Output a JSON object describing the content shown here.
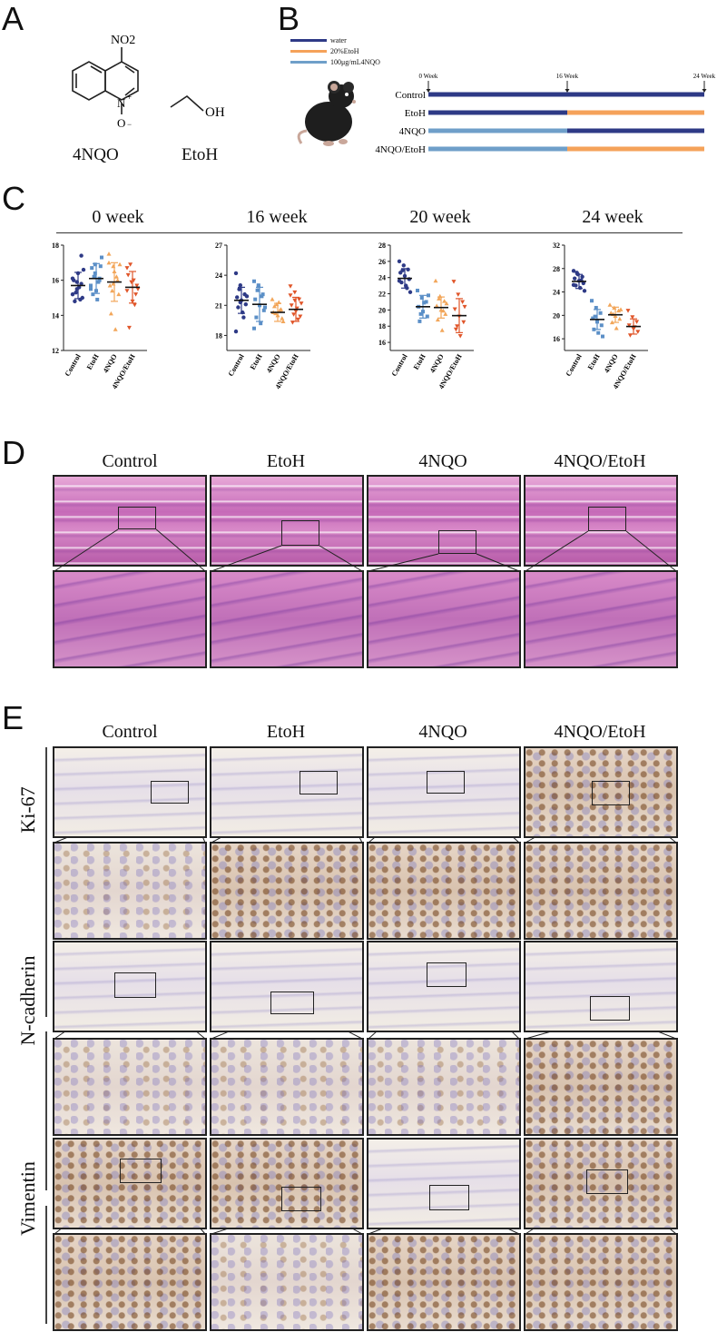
{
  "panels": {
    "A": "A",
    "B": "B",
    "C": "C",
    "D": "D",
    "E": "E"
  },
  "panelA": {
    "chem1_label": "4NQO",
    "chem2_label": "EtoH",
    "no2_label": "NO2",
    "oh_label": "OH",
    "n_label": "N",
    "o_label": "O"
  },
  "panelB": {
    "legend": [
      {
        "label": "water",
        "color": "#2e3a86"
      },
      {
        "label": "20%EtoH",
        "color": "#f5a25a"
      },
      {
        "label": "100μg/mL4NQO",
        "color": "#6f9fc9"
      }
    ],
    "timepoints": [
      "0 Week",
      "16 Week",
      "24 Week"
    ],
    "groups": [
      {
        "name": "Control",
        "before": "#2e3a86",
        "after": "#2e3a86"
      },
      {
        "name": "EtoH",
        "before": "#2e3a86",
        "after": "#f5a25a"
      },
      {
        "name": "4NQO",
        "before": "#6f9fc9",
        "after": "#2e3a86"
      },
      {
        "name": "4NQO/EtoH",
        "before": "#6f9fc9",
        "after": "#f5a25a"
      }
    ]
  },
  "chart_data": [
    {
      "type": "scatter",
      "title": "0 week",
      "categories": [
        "Control",
        "EtoH",
        "4NQO",
        "4NQO/EtoH"
      ],
      "colors": [
        "#2e3a86",
        "#5b8fc7",
        "#f2a65a",
        "#e0562a"
      ],
      "ylim": [
        12,
        18
      ],
      "yticks": [
        12,
        14,
        16,
        18
      ],
      "means": [
        15.7,
        16.1,
        15.9,
        15.6
      ],
      "sds": [
        0.75,
        0.85,
        1.1,
        0.9
      ],
      "points": [
        [
          15.2,
          15.5,
          15.8,
          16.0,
          16.4,
          15.0,
          14.8,
          15.6,
          16.6,
          15.3,
          14.9,
          16.1,
          15.9,
          17.4
        ],
        [
          15.7,
          16.4,
          16.0,
          16.7,
          15.4,
          16.8,
          15.2,
          14.9,
          17.3,
          16.2,
          15.9,
          15.5,
          16.9,
          16.1
        ],
        [
          17.5,
          16.8,
          16.0,
          15.7,
          16.5,
          15.2,
          14.1,
          13.2,
          16.9,
          15.4,
          16.2,
          17.0,
          15.8
        ],
        [
          16.7,
          15.9,
          15.2,
          16.3,
          14.8,
          15.7,
          13.3,
          16.0,
          15.5,
          16.9,
          14.6,
          15.4
        ]
      ]
    },
    {
      "type": "scatter",
      "title": "16 week",
      "categories": [
        "Control",
        "EtoH",
        "4NQO",
        "4NQO/EtoH"
      ],
      "colors": [
        "#2e3a86",
        "#5b8fc7",
        "#f2a65a",
        "#e0562a"
      ],
      "ylim": [
        16.5,
        27
      ],
      "yticks": [
        18,
        21,
        24,
        27
      ],
      "means": [
        21.5,
        21.1,
        20.3,
        20.6
      ],
      "sds": [
        1.3,
        1.7,
        0.9,
        1.2
      ],
      "points": [
        [
          24.2,
          23.0,
          22.1,
          21.8,
          21.5,
          21.1,
          20.8,
          20.3,
          21.9,
          22.6,
          19.8,
          18.4,
          21.3
        ],
        [
          23.4,
          22.9,
          22.1,
          21.6,
          21.0,
          20.5,
          19.8,
          19.2,
          20.8,
          22.5,
          21.9,
          18.7,
          23.0
        ],
        [
          21.6,
          21.1,
          20.6,
          20.3,
          20.0,
          19.7,
          20.9,
          21.3,
          19.4,
          20.2,
          20.5
        ],
        [
          22.9,
          22.3,
          21.6,
          21.0,
          20.4,
          19.9,
          19.3,
          20.7,
          21.2,
          20.1,
          19.6,
          22.0,
          21.5
        ]
      ]
    },
    {
      "type": "scatter",
      "title": "20 week",
      "categories": [
        "Control",
        "EtoH",
        "4NQO",
        "4NQO/EtoH"
      ],
      "colors": [
        "#2e3a86",
        "#5b8fc7",
        "#f2a65a",
        "#e0562a"
      ],
      "ylim": [
        15,
        28
      ],
      "yticks": [
        16,
        18,
        20,
        22,
        24,
        26,
        28
      ],
      "means": [
        23.9,
        20.4,
        20.3,
        19.3
      ],
      "sds": [
        1.2,
        1.4,
        1.3,
        2.1
      ],
      "points": [
        [
          26.0,
          25.5,
          25.0,
          24.6,
          24.2,
          23.8,
          23.4,
          23.0,
          22.2,
          24.9,
          22.7,
          23.6
        ],
        [
          22.4,
          21.5,
          21.0,
          20.4,
          19.8,
          19.2,
          18.6,
          20.9,
          21.8,
          19.5
        ],
        [
          23.6,
          21.7,
          21.1,
          20.5,
          20.0,
          19.5,
          18.8,
          17.5,
          20.8,
          21.4,
          19.9
        ],
        [
          23.5,
          21.9,
          21.0,
          20.1,
          19.2,
          18.5,
          17.6,
          16.8,
          20.4,
          18.0
        ]
      ]
    },
    {
      "type": "scatter",
      "title": "24 week",
      "categories": [
        "Control",
        "EtoH",
        "4NQO",
        "4NQO/EtoH"
      ],
      "colors": [
        "#2e3a86",
        "#5b8fc7",
        "#f2a65a",
        "#e0562a"
      ],
      "ylim": [
        14,
        32
      ],
      "yticks": [
        16,
        20,
        24,
        28,
        32
      ],
      "means": [
        25.8,
        19.3,
        20.1,
        18.1
      ],
      "sds": [
        1.2,
        1.7,
        1.3,
        1.3
      ],
      "points": [
        [
          27.6,
          27.0,
          26.6,
          26.3,
          25.9,
          25.5,
          25.1,
          24.7,
          24.2,
          27.3,
          26.0,
          25.2
        ],
        [
          22.5,
          21.3,
          20.4,
          19.5,
          18.9,
          18.3,
          17.6,
          17.0,
          16.4,
          19.8
        ],
        [
          21.8,
          21.3,
          20.8,
          20.4,
          19.9,
          19.4,
          18.8,
          17.8,
          21.0,
          20.2
        ],
        [
          20.8,
          19.7,
          18.9,
          18.3,
          17.7,
          17.2,
          16.6,
          18.0
        ]
      ]
    }
  ],
  "panelD": {
    "columns": [
      "Control",
      "EtoH",
      "4NQO",
      "4NQO/EtoH"
    ]
  },
  "panelE": {
    "columns": [
      "Control",
      "EtoH",
      "4NQO",
      "4NQO/EtoH"
    ],
    "rows": [
      "Ki-67",
      "N-cadherin",
      "Vimentin"
    ]
  }
}
